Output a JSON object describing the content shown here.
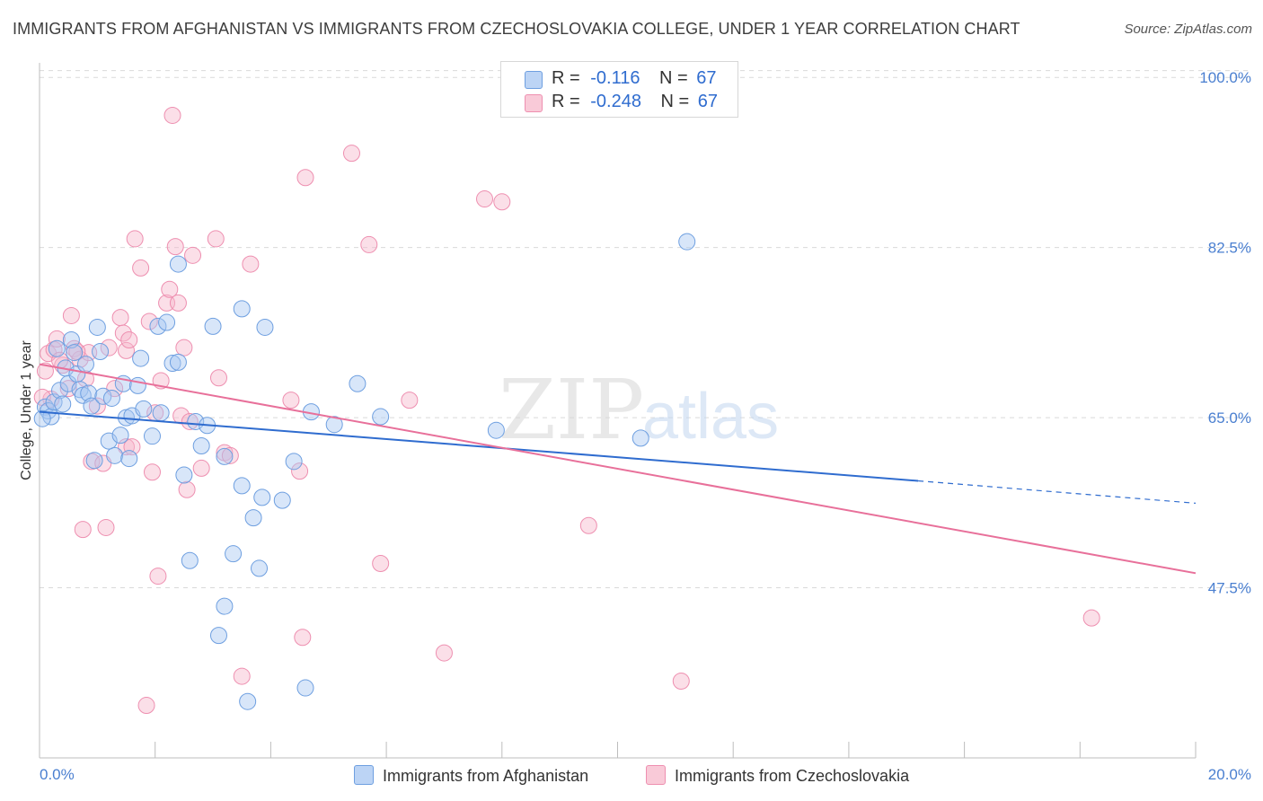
{
  "title": "IMMIGRANTS FROM AFGHANISTAN VS IMMIGRANTS FROM CZECHOSLOVAKIA COLLEGE, UNDER 1 YEAR CORRELATION CHART",
  "source": "Source: ZipAtlas.com",
  "watermark": {
    "zip": "ZIP",
    "atlas": "atlas"
  },
  "colors": {
    "blue_fill": "#a9c8f2",
    "blue_stroke": "#6e9fe0",
    "blue_line": "#2f6ccf",
    "pink_fill": "#f6b9cb",
    "pink_stroke": "#ee8fb0",
    "pink_line": "#e8709a",
    "grid": "#d9d9d9",
    "axis_label": "#4a7fd0"
  },
  "legend": {
    "rows": [
      {
        "r_label": "R =",
        "r_value": "-0.116",
        "n_label": "N =",
        "n_value": "67"
      },
      {
        "r_label": "R =",
        "r_value": "-0.248",
        "n_label": "N =",
        "n_value": "67"
      }
    ]
  },
  "bottom_legend": [
    "Immigrants from Afghanistan",
    "Immigrants from Czechoslovakia"
  ],
  "chart_data": {
    "type": "scatter",
    "title": "IMMIGRANTS FROM AFGHANISTAN VS IMMIGRANTS FROM CZECHOSLOVAKIA COLLEGE, UNDER 1 YEAR CORRELATION CHART",
    "xlabel": "",
    "ylabel": "College, Under 1 year",
    "xlim": [
      0,
      20
    ],
    "ylim": [
      30,
      101.5
    ],
    "x_tick_labels": [
      "0.0%",
      "20.0%"
    ],
    "y_ticks": [
      47.5,
      65.0,
      82.5,
      100.0
    ],
    "y_tick_labels": [
      "47.5%",
      "65.0%",
      "82.5%",
      "100.0%"
    ],
    "series": [
      {
        "name": "Immigrants from Afghanistan",
        "r": -0.116,
        "n": 67,
        "trend": {
          "x0": 0,
          "y0": 65.6,
          "x1": 15.2,
          "y1": 58.5,
          "dash_to_x": 20,
          "dash_to_y": 56.2
        },
        "points": [
          [
            0.1,
            66.1
          ],
          [
            0.15,
            65.7
          ],
          [
            0.2,
            65.1
          ],
          [
            0.25,
            66.6
          ],
          [
            0.3,
            72.1
          ],
          [
            0.35,
            67.8
          ],
          [
            0.4,
            66.4
          ],
          [
            0.45,
            70.1
          ],
          [
            0.5,
            68.5
          ],
          [
            0.55,
            73.0
          ],
          [
            0.6,
            71.7
          ],
          [
            0.65,
            69.5
          ],
          [
            0.7,
            67.9
          ],
          [
            0.75,
            67.3
          ],
          [
            0.8,
            70.5
          ],
          [
            0.85,
            67.5
          ],
          [
            0.9,
            66.2
          ],
          [
            0.95,
            60.6
          ],
          [
            1.0,
            74.3
          ],
          [
            1.05,
            71.8
          ],
          [
            1.1,
            67.2
          ],
          [
            1.2,
            62.6
          ],
          [
            1.25,
            67.0
          ],
          [
            1.3,
            61.1
          ],
          [
            1.4,
            63.2
          ],
          [
            1.45,
            68.5
          ],
          [
            1.5,
            65.0
          ],
          [
            1.55,
            60.8
          ],
          [
            1.6,
            65.2
          ],
          [
            1.7,
            68.3
          ],
          [
            1.75,
            71.1
          ],
          [
            1.8,
            65.9
          ],
          [
            1.95,
            63.1
          ],
          [
            2.05,
            74.4
          ],
          [
            2.1,
            65.5
          ],
          [
            2.2,
            74.8
          ],
          [
            2.3,
            70.6
          ],
          [
            2.4,
            80.8
          ],
          [
            2.4,
            70.7
          ],
          [
            2.5,
            59.1
          ],
          [
            2.6,
            50.3
          ],
          [
            2.7,
            64.6
          ],
          [
            2.8,
            62.1
          ],
          [
            2.9,
            64.2
          ],
          [
            3.0,
            74.4
          ],
          [
            3.1,
            42.6
          ],
          [
            3.2,
            61.0
          ],
          [
            3.2,
            45.6
          ],
          [
            3.35,
            51.0
          ],
          [
            3.5,
            58.0
          ],
          [
            3.5,
            76.2
          ],
          [
            3.6,
            35.8
          ],
          [
            3.7,
            54.7
          ],
          [
            3.8,
            49.5
          ],
          [
            3.85,
            56.8
          ],
          [
            3.9,
            74.3
          ],
          [
            4.2,
            56.5
          ],
          [
            4.4,
            60.5
          ],
          [
            4.6,
            37.2
          ],
          [
            4.7,
            65.6
          ],
          [
            5.1,
            64.3
          ],
          [
            5.5,
            68.5
          ],
          [
            5.9,
            65.1
          ],
          [
            7.9,
            63.7
          ],
          [
            10.4,
            62.9
          ],
          [
            11.2,
            83.1
          ],
          [
            0.05,
            64.9
          ]
        ]
      },
      {
        "name": "Immigrants from Czechoslovakia",
        "r": -0.248,
        "n": 67,
        "trend": {
          "x0": 0,
          "y0": 70.5,
          "x1": 20,
          "y1": 49.0
        },
        "points": [
          [
            0.1,
            69.8
          ],
          [
            0.15,
            71.6
          ],
          [
            0.2,
            66.9
          ],
          [
            0.25,
            72.0
          ],
          [
            0.3,
            73.1
          ],
          [
            0.4,
            70.4
          ],
          [
            0.5,
            68.0
          ],
          [
            0.55,
            75.5
          ],
          [
            0.6,
            72.1
          ],
          [
            0.7,
            71.0
          ],
          [
            0.75,
            53.5
          ],
          [
            0.8,
            69.0
          ],
          [
            0.85,
            71.7
          ],
          [
            0.9,
            60.5
          ],
          [
            1.0,
            66.2
          ],
          [
            1.1,
            60.3
          ],
          [
            1.15,
            53.7
          ],
          [
            1.2,
            72.2
          ],
          [
            1.3,
            68.0
          ],
          [
            1.4,
            75.3
          ],
          [
            1.45,
            73.7
          ],
          [
            1.5,
            62.0
          ],
          [
            1.5,
            71.9
          ],
          [
            1.55,
            73.0
          ],
          [
            1.6,
            62.0
          ],
          [
            1.65,
            83.4
          ],
          [
            1.75,
            80.4
          ],
          [
            1.85,
            35.4
          ],
          [
            1.9,
            74.9
          ],
          [
            1.95,
            59.4
          ],
          [
            2.0,
            65.5
          ],
          [
            2.05,
            48.7
          ],
          [
            2.1,
            68.8
          ],
          [
            2.2,
            76.8
          ],
          [
            2.25,
            78.2
          ],
          [
            2.3,
            96.1
          ],
          [
            2.35,
            82.6
          ],
          [
            2.4,
            76.8
          ],
          [
            2.45,
            65.2
          ],
          [
            2.5,
            72.2
          ],
          [
            2.55,
            57.6
          ],
          [
            2.6,
            64.6
          ],
          [
            2.65,
            81.7
          ],
          [
            2.8,
            59.8
          ],
          [
            3.05,
            83.4
          ],
          [
            3.1,
            69.1
          ],
          [
            3.2,
            61.4
          ],
          [
            3.3,
            61.1
          ],
          [
            3.5,
            38.4
          ],
          [
            3.65,
            80.8
          ],
          [
            4.35,
            66.8
          ],
          [
            4.55,
            42.4
          ],
          [
            4.5,
            59.5
          ],
          [
            4.6,
            89.7
          ],
          [
            5.4,
            92.2
          ],
          [
            5.7,
            82.8
          ],
          [
            5.9,
            50.0
          ],
          [
            6.4,
            66.8
          ],
          [
            7.0,
            40.8
          ],
          [
            7.7,
            87.5
          ],
          [
            8.0,
            87.2
          ],
          [
            9.5,
            53.9
          ],
          [
            11.1,
            37.9
          ],
          [
            18.2,
            44.4
          ],
          [
            0.05,
            67.1
          ],
          [
            0.35,
            70.9
          ],
          [
            0.65,
            71.8
          ]
        ]
      }
    ]
  }
}
